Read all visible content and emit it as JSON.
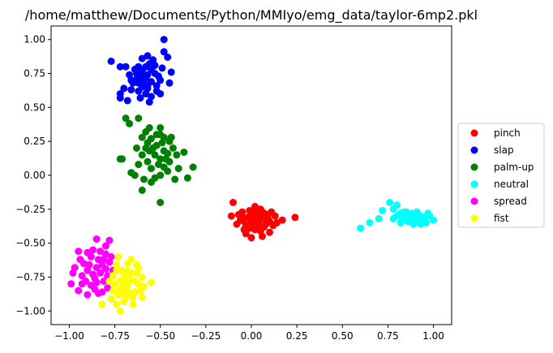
{
  "chart_data": {
    "type": "scatter",
    "title": "/home/matthew/Documents/Python/MMIyo/emg_data/taylor-6mp2.pkl",
    "xlabel": "",
    "ylabel": "",
    "xlim": [
      -1.1,
      1.1
    ],
    "ylim": [
      -1.1,
      1.1
    ],
    "x_ticks": [
      -1.0,
      -0.75,
      -0.5,
      -0.25,
      0.0,
      0.25,
      0.5,
      0.75,
      1.0
    ],
    "x_tick_labels": [
      "−1.00",
      "−0.75",
      "−0.50",
      "−0.25",
      "0.00",
      "0.25",
      "0.50",
      "0.75",
      "1.00"
    ],
    "y_ticks": [
      -1.0,
      -0.75,
      -0.5,
      -0.25,
      0.0,
      0.25,
      0.5,
      0.75,
      1.0
    ],
    "y_tick_labels": [
      "−1.00",
      "−0.75",
      "−0.50",
      "−0.25",
      "0.00",
      "0.25",
      "0.50",
      "0.75",
      "1.00"
    ],
    "grid": false,
    "legend_position": "outside-right",
    "series": [
      {
        "name": "pinch",
        "color": "#ff0000",
        "points": [
          [
            -0.1,
            -0.2
          ],
          [
            -0.11,
            -0.3
          ],
          [
            0.24,
            -0.31
          ],
          [
            0.17,
            -0.33
          ],
          [
            0.05,
            -0.25
          ],
          [
            -0.03,
            -0.38
          ],
          [
            0.1,
            -0.42
          ],
          [
            0.0,
            -0.46
          ],
          [
            0.02,
            -0.23
          ],
          [
            0.06,
            -0.45
          ],
          [
            -0.05,
            -0.27
          ],
          [
            0.12,
            -0.37
          ],
          [
            -0.02,
            -0.31
          ],
          [
            0.0,
            -0.33
          ],
          [
            0.03,
            -0.29
          ],
          [
            0.01,
            -0.35
          ],
          [
            -0.04,
            -0.34
          ],
          [
            0.05,
            -0.32
          ],
          [
            0.08,
            -0.36
          ],
          [
            -0.06,
            -0.33
          ],
          [
            0.02,
            -0.4
          ],
          [
            0.07,
            -0.28
          ],
          [
            -0.01,
            -0.26
          ],
          [
            0.09,
            -0.31
          ],
          [
            0.04,
            -0.38
          ],
          [
            -0.03,
            -0.43
          ],
          [
            0.13,
            -0.3
          ],
          [
            0.11,
            -0.27
          ],
          [
            -0.08,
            -0.36
          ],
          [
            0.0,
            -0.29
          ],
          [
            0.03,
            -0.34
          ],
          [
            0.06,
            -0.31
          ],
          [
            -0.02,
            -0.37
          ],
          [
            0.01,
            -0.3
          ],
          [
            0.04,
            -0.35
          ],
          [
            -0.05,
            -0.31
          ],
          [
            0.08,
            -0.33
          ],
          [
            0.02,
            -0.27
          ],
          [
            -0.01,
            -0.39
          ],
          [
            0.05,
            -0.41
          ],
          [
            0.1,
            -0.34
          ],
          [
            -0.07,
            -0.29
          ],
          [
            0.03,
            -0.32
          ],
          [
            0.07,
            -0.38
          ],
          [
            0.0,
            -0.36
          ],
          [
            0.06,
            -0.27
          ],
          [
            -0.04,
            -0.4
          ],
          [
            0.09,
            -0.29
          ],
          [
            0.02,
            -0.31
          ],
          [
            0.14,
            -0.35
          ]
        ]
      },
      {
        "name": "slap",
        "color": "#0000ff",
        "points": [
          [
            -0.77,
            0.84
          ],
          [
            -0.72,
            0.8
          ],
          [
            -0.72,
            0.6
          ],
          [
            -0.72,
            0.57
          ],
          [
            -0.68,
            0.55
          ],
          [
            -0.7,
            0.64
          ],
          [
            -0.48,
            0.91
          ],
          [
            -0.48,
            1.0
          ],
          [
            -0.46,
            0.87
          ],
          [
            -0.44,
            0.76
          ],
          [
            -0.45,
            0.68
          ],
          [
            -0.57,
            0.88
          ],
          [
            -0.6,
            0.86
          ],
          [
            -0.62,
            0.8
          ],
          [
            -0.58,
            0.72
          ],
          [
            -0.6,
            0.7
          ],
          [
            -0.63,
            0.75
          ],
          [
            -0.55,
            0.78
          ],
          [
            -0.6,
            0.65
          ],
          [
            -0.57,
            0.66
          ],
          [
            -0.65,
            0.68
          ],
          [
            -0.62,
            0.62
          ],
          [
            -0.58,
            0.6
          ],
          [
            -0.55,
            0.58
          ],
          [
            -0.52,
            0.62
          ],
          [
            -0.5,
            0.7
          ],
          [
            -0.53,
            0.75
          ],
          [
            -0.56,
            0.82
          ],
          [
            -0.6,
            0.77
          ],
          [
            -0.63,
            0.71
          ],
          [
            -0.67,
            0.74
          ],
          [
            -0.66,
            0.63
          ],
          [
            -0.61,
            0.57
          ],
          [
            -0.56,
            0.54
          ],
          [
            -0.52,
            0.66
          ],
          [
            -0.49,
            0.79
          ],
          [
            -0.54,
            0.85
          ],
          [
            -0.58,
            0.8
          ],
          [
            -0.62,
            0.68
          ],
          [
            -0.57,
            0.74
          ],
          [
            -0.59,
            0.7
          ],
          [
            -0.64,
            0.78
          ],
          [
            -0.51,
            0.73
          ],
          [
            -0.55,
            0.69
          ],
          [
            -0.6,
            0.73
          ],
          [
            -0.53,
            0.81
          ],
          [
            -0.69,
            0.8
          ],
          [
            -0.66,
            0.7
          ],
          [
            -0.57,
            0.64
          ],
          [
            -0.5,
            0.6
          ]
        ]
      },
      {
        "name": "palm-up",
        "color": "#008000",
        "points": [
          [
            -0.69,
            0.42
          ],
          [
            -0.67,
            0.38
          ],
          [
            -0.62,
            0.42
          ],
          [
            -0.56,
            0.35
          ],
          [
            -0.72,
            0.12
          ],
          [
            -0.71,
            0.12
          ],
          [
            -0.64,
            0.0
          ],
          [
            -0.66,
            0.02
          ],
          [
            -0.6,
            -0.11
          ],
          [
            -0.55,
            -0.05
          ],
          [
            -0.5,
            -0.2
          ],
          [
            -0.4,
            0.05
          ],
          [
            -0.37,
            0.17
          ],
          [
            -0.32,
            0.06
          ],
          [
            -0.35,
            -0.02
          ],
          [
            -0.42,
            -0.03
          ],
          [
            -0.5,
            0.3
          ],
          [
            -0.55,
            0.27
          ],
          [
            -0.58,
            0.2
          ],
          [
            -0.52,
            0.22
          ],
          [
            -0.48,
            0.18
          ],
          [
            -0.45,
            0.25
          ],
          [
            -0.5,
            0.35
          ],
          [
            -0.53,
            0.15
          ],
          [
            -0.47,
            0.12
          ],
          [
            -0.43,
            0.2
          ],
          [
            -0.57,
            0.1
          ],
          [
            -0.6,
            0.28
          ],
          [
            -0.63,
            0.2
          ],
          [
            -0.55,
            0.05
          ],
          [
            -0.5,
            0.0
          ],
          [
            -0.45,
            0.1
          ],
          [
            -0.48,
            0.28
          ],
          [
            -0.52,
            0.3
          ],
          [
            -0.58,
            0.32
          ],
          [
            -0.6,
            0.15
          ],
          [
            -0.54,
            0.2
          ],
          [
            -0.49,
            0.24
          ],
          [
            -0.46,
            0.16
          ],
          [
            -0.51,
            0.08
          ],
          [
            -0.56,
            0.18
          ],
          [
            -0.62,
            0.08
          ],
          [
            -0.44,
            0.28
          ],
          [
            -0.48,
            0.06
          ],
          [
            -0.53,
            -0.02
          ],
          [
            -0.41,
            0.15
          ],
          [
            -0.57,
            0.24
          ],
          [
            -0.5,
            0.12
          ],
          [
            -0.46,
            0.03
          ],
          [
            -0.59,
            -0.03
          ]
        ]
      },
      {
        "name": "neutral",
        "color": "#00ffff",
        "points": [
          [
            0.6,
            -0.39
          ],
          [
            0.65,
            -0.35
          ],
          [
            0.7,
            -0.32
          ],
          [
            0.72,
            -0.26
          ],
          [
            0.76,
            -0.2
          ],
          [
            0.78,
            -0.25
          ],
          [
            0.8,
            -0.22
          ],
          [
            0.82,
            -0.28
          ],
          [
            0.84,
            -0.3
          ],
          [
            0.85,
            -0.27
          ],
          [
            0.87,
            -0.32
          ],
          [
            0.88,
            -0.28
          ],
          [
            0.9,
            -0.3
          ],
          [
            0.92,
            -0.33
          ],
          [
            0.93,
            -0.3
          ],
          [
            0.95,
            -0.31
          ],
          [
            1.0,
            -0.33
          ],
          [
            0.97,
            -0.28
          ],
          [
            0.96,
            -0.35
          ],
          [
            0.89,
            -0.36
          ],
          [
            0.86,
            -0.34
          ],
          [
            0.83,
            -0.33
          ],
          [
            0.8,
            -0.3
          ],
          [
            0.78,
            -0.32
          ],
          [
            0.91,
            -0.27
          ],
          [
            0.94,
            -0.34
          ],
          [
            0.98,
            -0.3
          ],
          [
            0.88,
            -0.32
          ],
          [
            0.85,
            -0.31
          ],
          [
            0.82,
            -0.35
          ],
          [
            0.9,
            -0.35
          ],
          [
            0.87,
            -0.29
          ],
          [
            0.93,
            -0.36
          ],
          [
            0.84,
            -0.27
          ]
        ]
      },
      {
        "name": "spread",
        "color": "#ff00ff",
        "points": [
          [
            -0.85,
            -0.47
          ],
          [
            -0.8,
            -0.52
          ],
          [
            -0.78,
            -0.48
          ],
          [
            -0.95,
            -0.56
          ],
          [
            -0.99,
            -0.8
          ],
          [
            -0.98,
            -0.72
          ],
          [
            -0.95,
            -0.85
          ],
          [
            -0.9,
            -0.88
          ],
          [
            -0.82,
            -0.86
          ],
          [
            -0.79,
            -0.83
          ],
          [
            -0.92,
            -0.65
          ],
          [
            -0.88,
            -0.6
          ],
          [
            -0.85,
            -0.68
          ],
          [
            -0.83,
            -0.72
          ],
          [
            -0.86,
            -0.76
          ],
          [
            -0.9,
            -0.7
          ],
          [
            -0.93,
            -0.74
          ],
          [
            -0.87,
            -0.55
          ],
          [
            -0.84,
            -0.62
          ],
          [
            -0.8,
            -0.58
          ],
          [
            -0.78,
            -0.64
          ],
          [
            -0.76,
            -0.7
          ],
          [
            -0.81,
            -0.78
          ],
          [
            -0.88,
            -0.81
          ],
          [
            -0.94,
            -0.62
          ],
          [
            -0.97,
            -0.68
          ],
          [
            -0.91,
            -0.78
          ],
          [
            -0.86,
            -0.84
          ],
          [
            -0.82,
            -0.66
          ],
          [
            -0.79,
            -0.74
          ],
          [
            -0.83,
            -0.56
          ],
          [
            -0.89,
            -0.66
          ],
          [
            -0.85,
            -0.79
          ],
          [
            -0.77,
            -0.6
          ],
          [
            -0.8,
            -0.69
          ],
          [
            -0.93,
            -0.8
          ],
          [
            -0.84,
            -0.87
          ],
          [
            -0.9,
            -0.57
          ],
          [
            -0.87,
            -0.73
          ],
          [
            -0.81,
            -0.62
          ]
        ]
      },
      {
        "name": "fist",
        "color": "#ffff00",
        "points": [
          [
            -0.73,
            -0.6
          ],
          [
            -0.74,
            -0.7
          ],
          [
            -0.76,
            -0.85
          ],
          [
            -0.77,
            -0.91
          ],
          [
            -0.82,
            -0.95
          ],
          [
            -0.74,
            -0.95
          ],
          [
            -0.72,
            -1.0
          ],
          [
            -0.7,
            -0.93
          ],
          [
            -0.65,
            -0.9
          ],
          [
            -0.62,
            -0.8
          ],
          [
            -0.6,
            -0.75
          ],
          [
            -0.55,
            -0.79
          ],
          [
            -0.62,
            -0.68
          ],
          [
            -0.68,
            -0.65
          ],
          [
            -0.7,
            -0.75
          ],
          [
            -0.66,
            -0.72
          ],
          [
            -0.64,
            -0.86
          ],
          [
            -0.68,
            -0.82
          ],
          [
            -0.72,
            -0.78
          ],
          [
            -0.75,
            -0.8
          ],
          [
            -0.7,
            -0.85
          ],
          [
            -0.67,
            -0.77
          ],
          [
            -0.63,
            -0.72
          ],
          [
            -0.71,
            -0.7
          ],
          [
            -0.73,
            -0.88
          ],
          [
            -0.65,
            -0.95
          ],
          [
            -0.69,
            -0.89
          ],
          [
            -0.66,
            -0.62
          ],
          [
            -0.61,
            -0.85
          ],
          [
            -0.59,
            -0.82
          ],
          [
            -0.76,
            -0.74
          ],
          [
            -0.74,
            -0.66
          ],
          [
            -0.68,
            -0.71
          ],
          [
            -0.64,
            -0.78
          ],
          [
            -0.7,
            -0.8
          ],
          [
            -0.72,
            -0.84
          ],
          [
            -0.67,
            -0.87
          ],
          [
            -0.63,
            -0.66
          ],
          [
            -0.78,
            -0.78
          ],
          [
            -0.6,
            -0.9
          ]
        ]
      }
    ]
  }
}
